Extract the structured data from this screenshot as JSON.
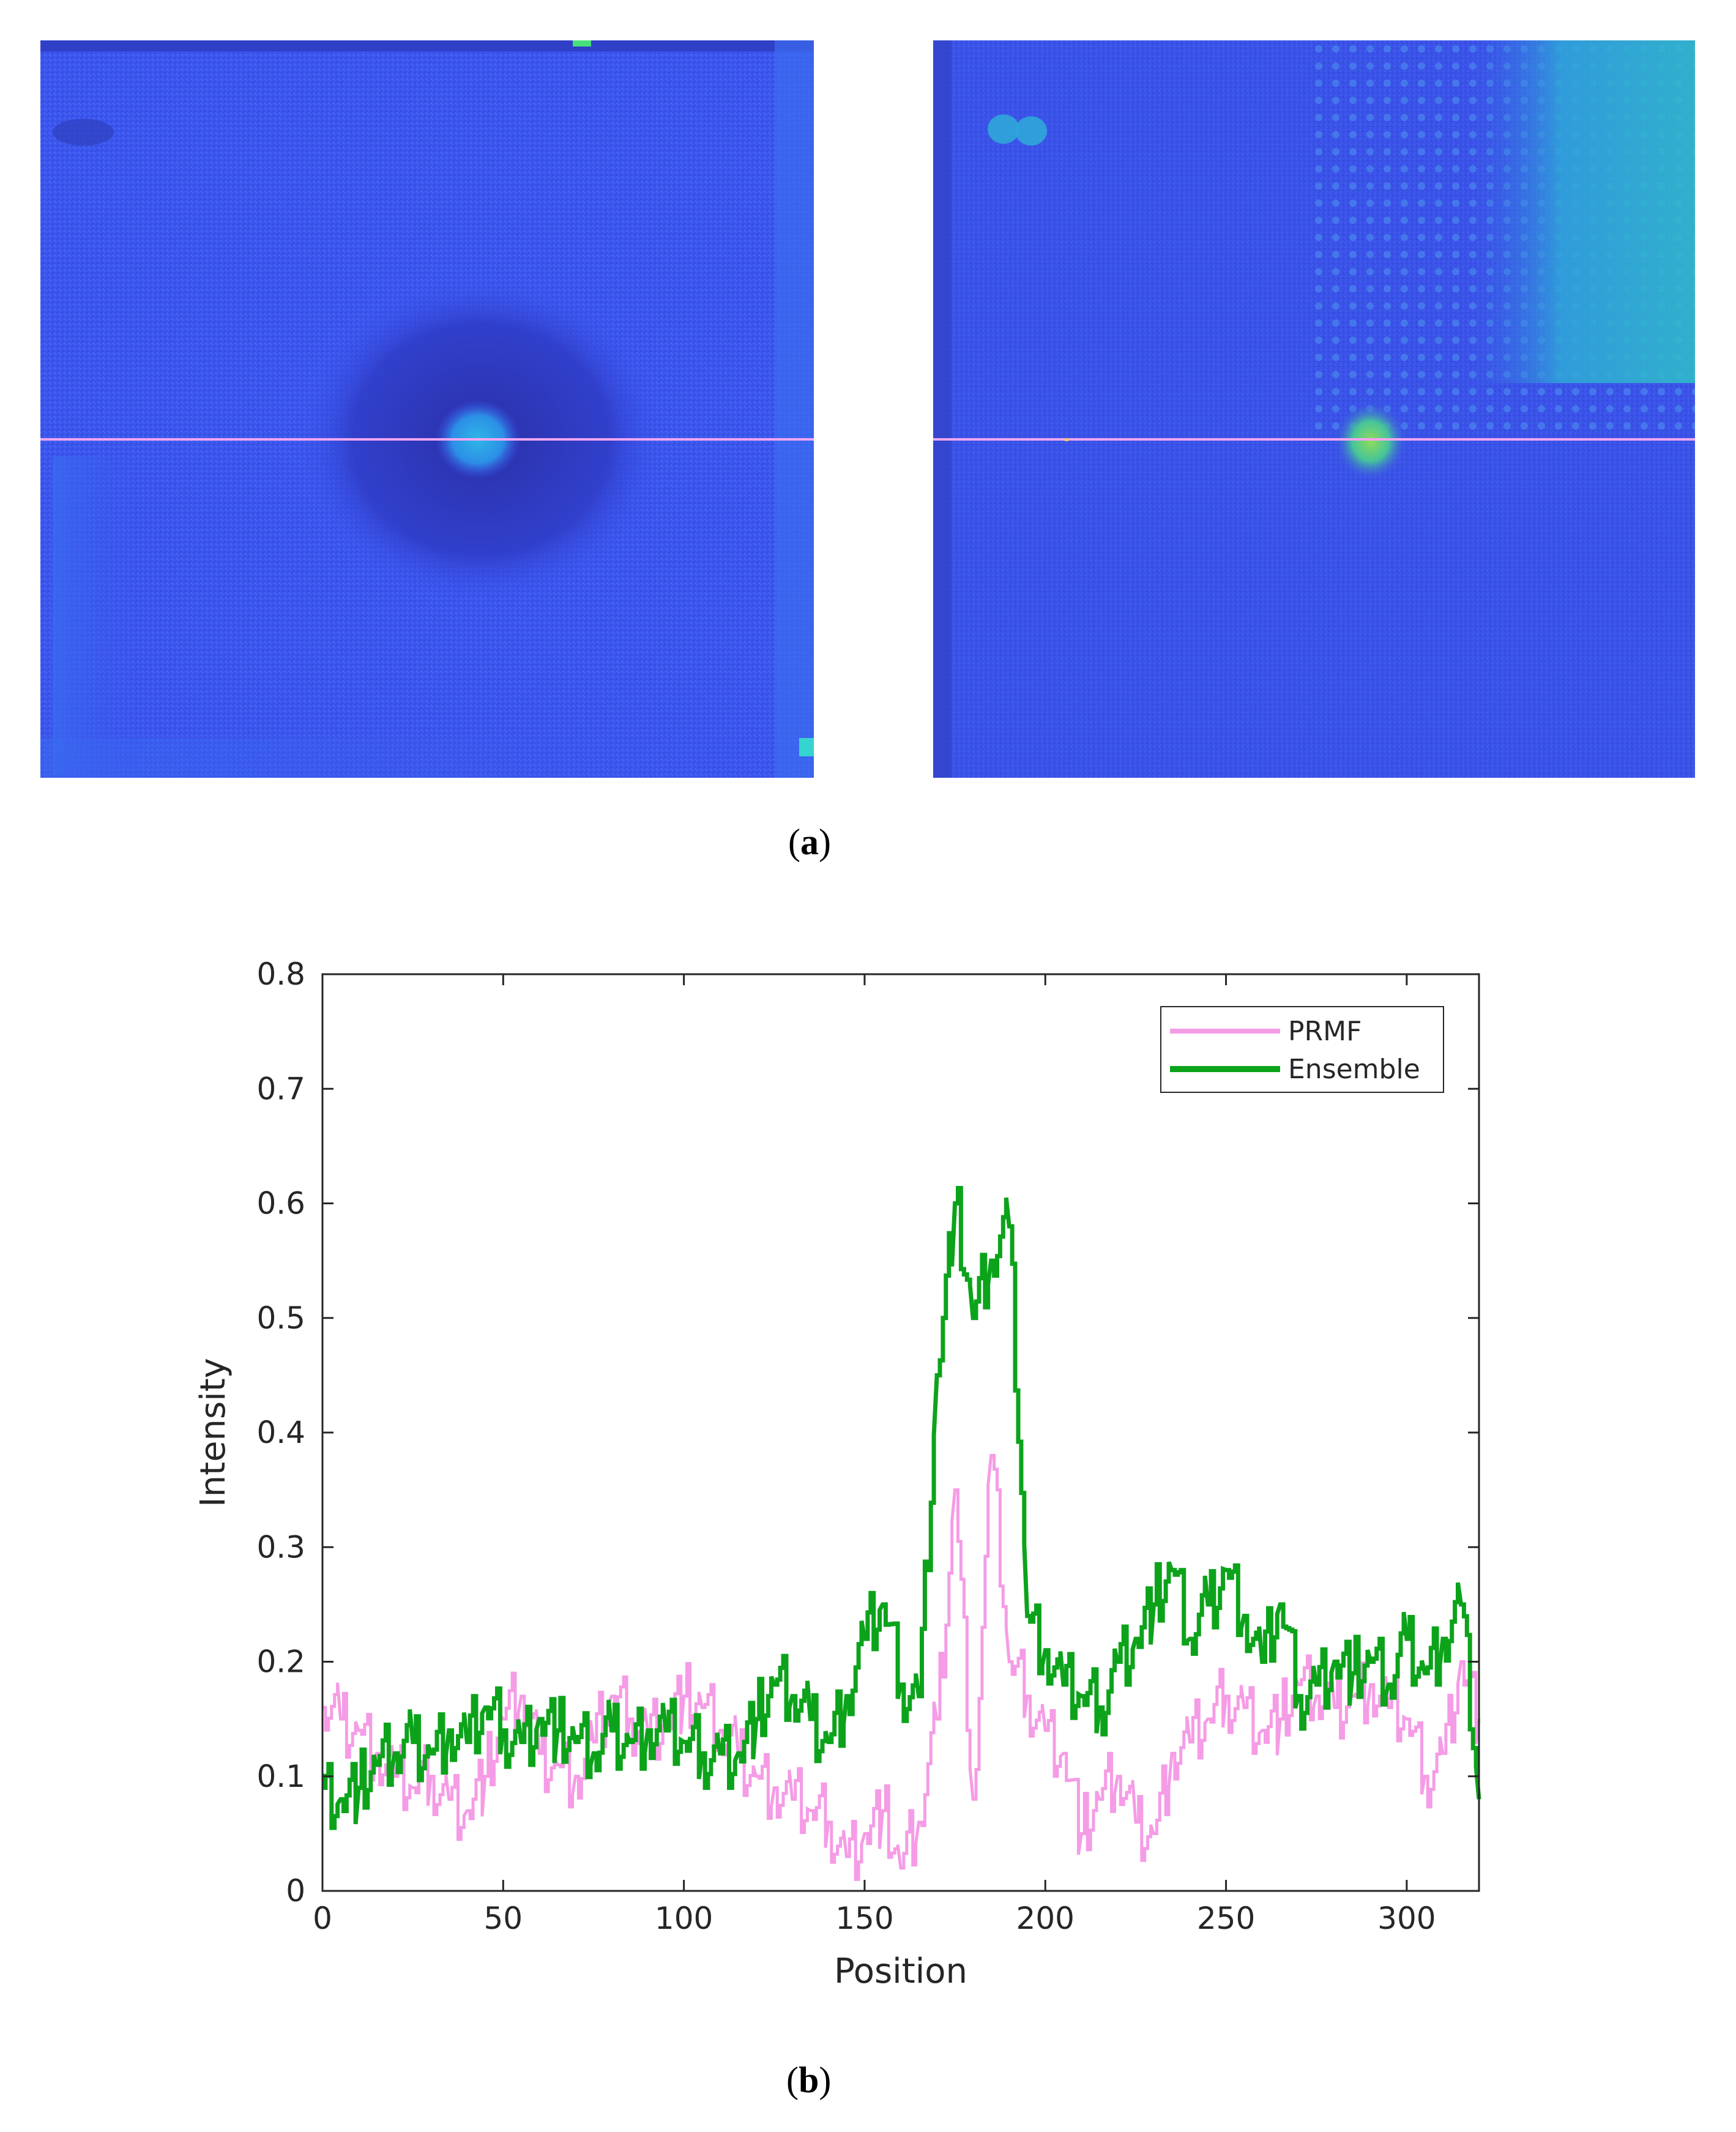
{
  "figure": {
    "panel_a": {
      "label": "a",
      "left_image": {
        "description_icon": "heatmap-image",
        "base_color": "#3b55ee"
      },
      "right_image": {
        "description_icon": "heatmap-image",
        "base_color": "#3a52e8"
      }
    },
    "panel_b": {
      "label": "b"
    },
    "colors": {
      "prmf": "#f59ce6",
      "ensemble": "#0ca31b",
      "axis": "#262626",
      "scanline": "#f2a6f0"
    }
  },
  "chart_data": {
    "type": "line",
    "title": "",
    "xlabel": "Position",
    "ylabel": "Intensity",
    "xlim": [
      0,
      320
    ],
    "ylim": [
      0,
      0.8
    ],
    "xticks": [
      "0",
      "50",
      "100",
      "150",
      "200",
      "250",
      "300"
    ],
    "yticks": [
      "0",
      "0.1",
      "0.2",
      "0.3",
      "0.4",
      "0.5",
      "0.6",
      "0.7",
      "0.8"
    ],
    "legend_position": "top-right",
    "x": [
      0,
      5,
      10,
      15,
      20,
      25,
      30,
      35,
      40,
      45,
      50,
      55,
      60,
      65,
      70,
      75,
      80,
      85,
      90,
      95,
      100,
      105,
      110,
      115,
      120,
      125,
      130,
      135,
      140,
      145,
      150,
      155,
      160,
      165,
      170,
      175,
      180,
      185,
      190,
      195,
      200,
      205,
      210,
      215,
      220,
      225,
      230,
      235,
      240,
      245,
      250,
      255,
      260,
      265,
      270,
      275,
      280,
      285,
      290,
      295,
      300,
      305,
      310,
      315,
      320
    ],
    "series": [
      {
        "name": "PRMF",
        "values": [
          0.16,
          0.15,
          0.14,
          0.12,
          0.1,
          0.09,
          0.1,
          0.08,
          0.07,
          0.1,
          0.15,
          0.17,
          0.12,
          0.11,
          0.1,
          0.13,
          0.17,
          0.15,
          0.14,
          0.15,
          0.17,
          0.16,
          0.14,
          0.12,
          0.1,
          0.09,
          0.08,
          0.07,
          0.06,
          0.03,
          0.05,
          0.07,
          0.02,
          0.06,
          0.15,
          0.35,
          0.08,
          0.38,
          0.2,
          0.17,
          0.14,
          0.12,
          0.05,
          0.08,
          0.1,
          0.06,
          0.05,
          0.12,
          0.13,
          0.15,
          0.17,
          0.16,
          0.14,
          0.15,
          0.18,
          0.17,
          0.16,
          0.17,
          0.18,
          0.16,
          0.15,
          0.1,
          0.12,
          0.2,
          0.15
        ]
      },
      {
        "name": "Ensemble",
        "values": [
          0.09,
          0.08,
          0.09,
          0.11,
          0.12,
          0.13,
          0.12,
          0.14,
          0.13,
          0.16,
          0.14,
          0.13,
          0.15,
          0.14,
          0.13,
          0.12,
          0.14,
          0.13,
          0.14,
          0.14,
          0.13,
          0.12,
          0.12,
          0.12,
          0.15,
          0.18,
          0.17,
          0.15,
          0.13,
          0.17,
          0.22,
          0.25,
          0.18,
          0.17,
          0.45,
          0.6,
          0.5,
          0.55,
          0.58,
          0.24,
          0.21,
          0.18,
          0.17,
          0.16,
          0.2,
          0.22,
          0.25,
          0.28,
          0.22,
          0.25,
          0.28,
          0.24,
          0.2,
          0.25,
          0.17,
          0.18,
          0.2,
          0.19,
          0.2,
          0.18,
          0.22,
          0.19,
          0.22,
          0.25,
          0.08
        ]
      }
    ]
  }
}
